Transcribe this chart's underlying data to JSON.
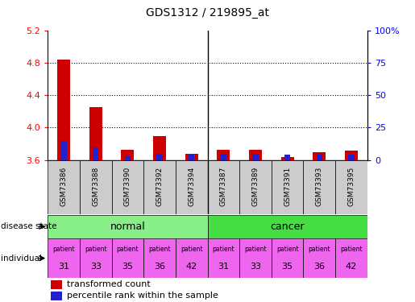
{
  "title": "GDS1312 / 219895_at",
  "samples": [
    "GSM73386",
    "GSM73388",
    "GSM73390",
    "GSM73392",
    "GSM73394",
    "GSM73387",
    "GSM73389",
    "GSM73391",
    "GSM73393",
    "GSM73395"
  ],
  "transformed_counts": [
    4.84,
    4.25,
    3.73,
    3.9,
    3.68,
    3.73,
    3.73,
    3.64,
    3.7,
    3.72
  ],
  "percentile_ranks": [
    15,
    10,
    3,
    5,
    4,
    5,
    5,
    4,
    5,
    4
  ],
  "ylim_left": [
    3.6,
    5.2
  ],
  "ylim_right": [
    0,
    100
  ],
  "yticks_left": [
    3.6,
    4.0,
    4.4,
    4.8,
    5.2
  ],
  "yticks_right": [
    0,
    25,
    50,
    75,
    100
  ],
  "ytick_labels_right": [
    "0",
    "25",
    "50",
    "75",
    "100%"
  ],
  "bar_color_red": "#cc0000",
  "bar_color_blue": "#2222cc",
  "grid_color": "#000000",
  "disease_state_normal_color": "#88ee88",
  "disease_state_cancer_color": "#44dd44",
  "individual_color": "#ee66ee",
  "patients": [
    31,
    33,
    35,
    36,
    42,
    31,
    33,
    35,
    36,
    42
  ],
  "bar_width": 0.4,
  "blue_bar_width": 0.18,
  "base_value": 3.6,
  "sample_box_color": "#cccccc",
  "fig_bg": "#ffffff"
}
